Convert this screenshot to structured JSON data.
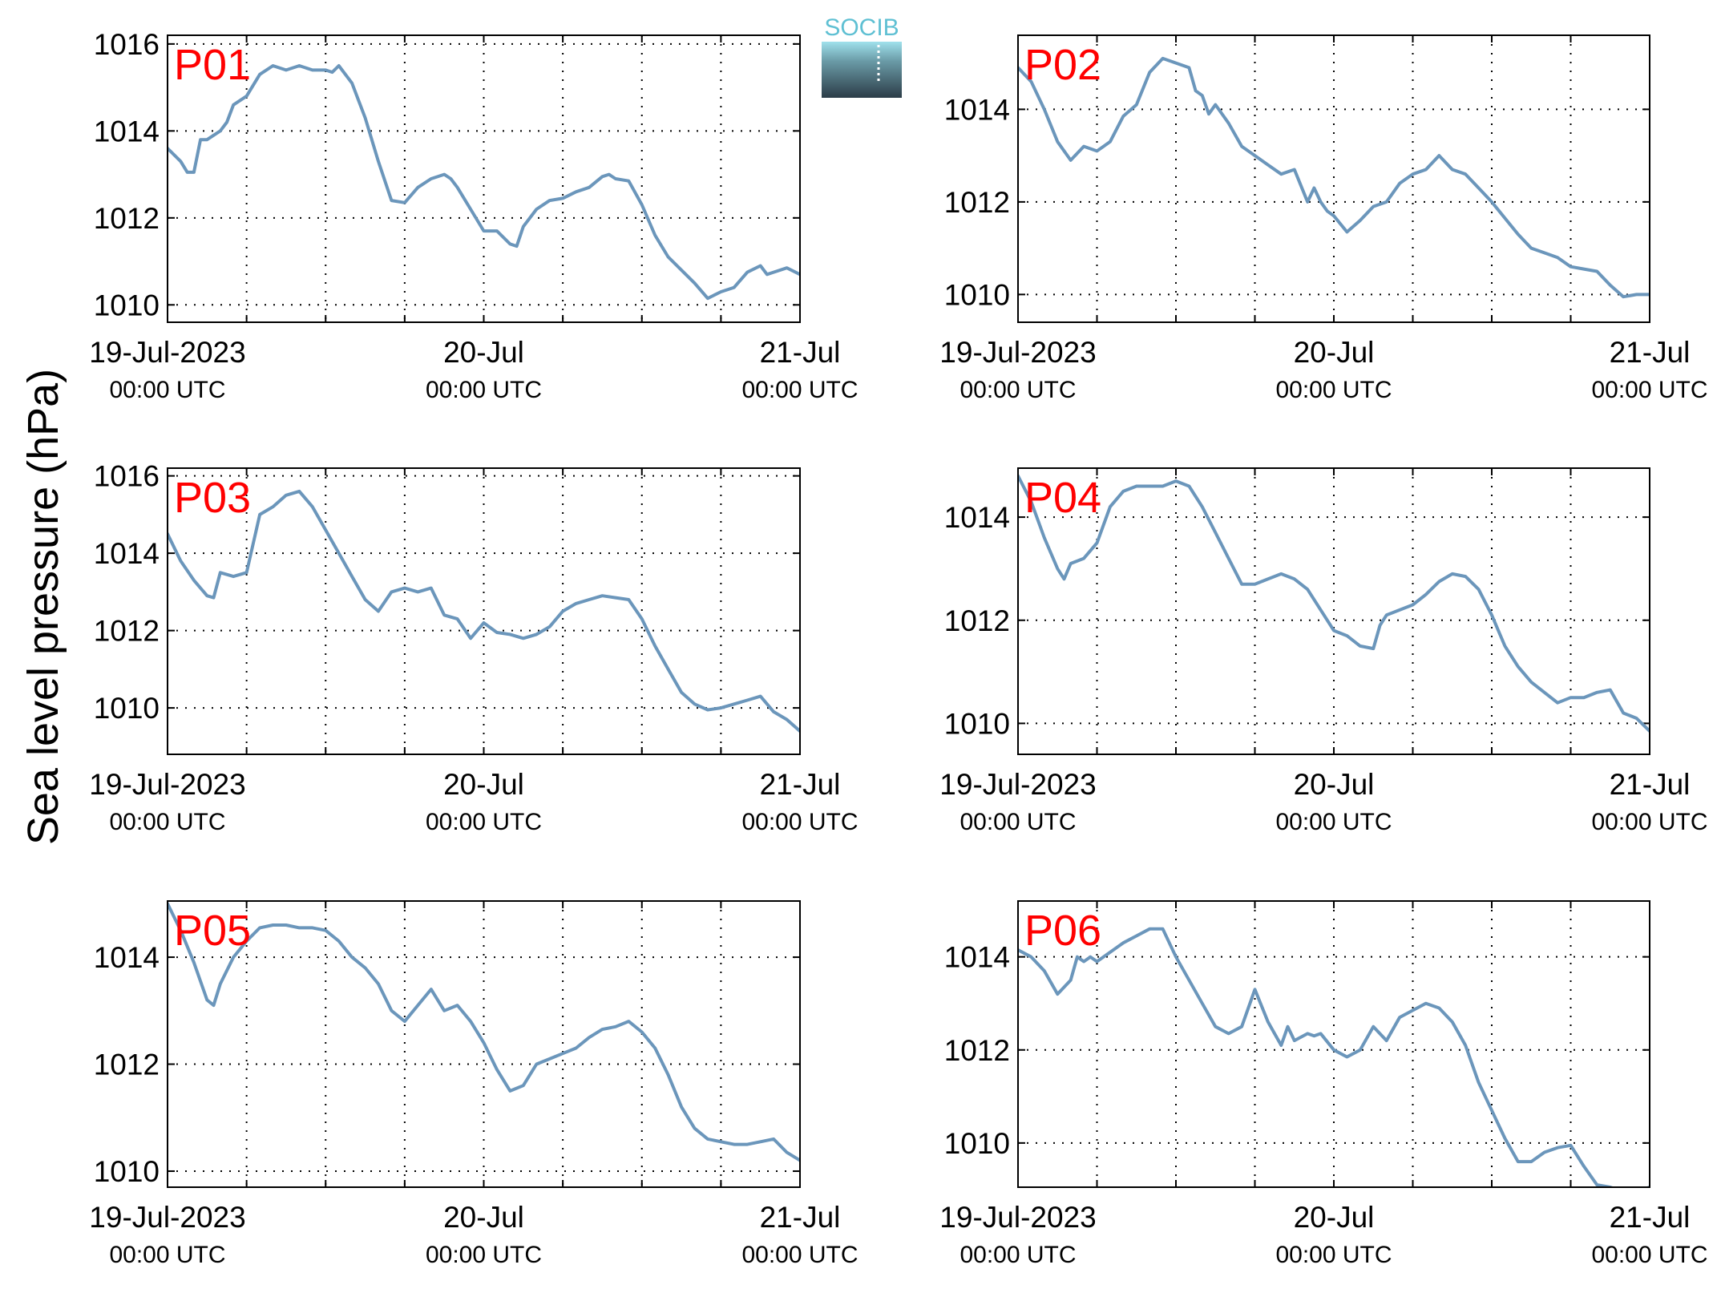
{
  "figure": {
    "ylabel": "Sea level pressure (hPa)",
    "logo_text": "SOCIB",
    "line_color": "#6b96bb",
    "label_color": "#ff0000",
    "axis_color": "#000000"
  },
  "x_axis": {
    "min": "2023-07-19T00:00",
    "max": "2023-07-21T00:00",
    "gridlines": [
      "2023-07-19T00:00",
      "2023-07-19T06:00",
      "2023-07-19T12:00",
      "2023-07-19T18:00",
      "2023-07-20T00:00",
      "2023-07-20T06:00",
      "2023-07-20T12:00",
      "2023-07-20T18:00",
      "2023-07-21T00:00"
    ],
    "ticks": [
      {
        "t": "2023-07-19T00:00",
        "label": "19-Jul-2023",
        "sublabel": "00:00 UTC"
      },
      {
        "t": "2023-07-20T00:00",
        "label": "20-Jul",
        "sublabel": "00:00 UTC"
      },
      {
        "t": "2023-07-21T00:00",
        "label": "21-Jul",
        "sublabel": "00:00 UTC"
      }
    ]
  },
  "chart_data": [
    {
      "type": "line",
      "label": "P01",
      "ylim": [
        1009.6,
        1016.2
      ],
      "yticks": [
        "1010",
        "1012",
        "1014",
        "1016"
      ],
      "grid": true,
      "series": [
        {
          "x": [
            "2023-07-19T00:00",
            "2023-07-19T01:00",
            "2023-07-19T01:30",
            "2023-07-19T02:00",
            "2023-07-19T02:30",
            "2023-07-19T03:00",
            "2023-07-19T04:00",
            "2023-07-19T04:30",
            "2023-07-19T05:00",
            "2023-07-19T06:00",
            "2023-07-19T07:00",
            "2023-07-19T08:00",
            "2023-07-19T09:00",
            "2023-07-19T10:00",
            "2023-07-19T11:00",
            "2023-07-19T12:00",
            "2023-07-19T12:30",
            "2023-07-19T13:00",
            "2023-07-19T14:00",
            "2023-07-19T15:00",
            "2023-07-19T16:00",
            "2023-07-19T17:00",
            "2023-07-19T18:00",
            "2023-07-19T19:00",
            "2023-07-19T20:00",
            "2023-07-19T21:00",
            "2023-07-19T21:30",
            "2023-07-19T22:00",
            "2023-07-19T23:00",
            "2023-07-20T00:00",
            "2023-07-20T01:00",
            "2023-07-20T02:00",
            "2023-07-20T02:30",
            "2023-07-20T03:00",
            "2023-07-20T04:00",
            "2023-07-20T05:00",
            "2023-07-20T06:00",
            "2023-07-20T07:00",
            "2023-07-20T08:00",
            "2023-07-20T09:00",
            "2023-07-20T09:30",
            "2023-07-20T10:00",
            "2023-07-20T11:00",
            "2023-07-20T12:00",
            "2023-07-20T13:00",
            "2023-07-20T14:00",
            "2023-07-20T15:00",
            "2023-07-20T16:00",
            "2023-07-20T17:00",
            "2023-07-20T18:00",
            "2023-07-20T19:00",
            "2023-07-20T20:00",
            "2023-07-20T21:00",
            "2023-07-20T21:30",
            "2023-07-20T22:00",
            "2023-07-20T23:00",
            "2023-07-21T00:00"
          ],
          "y": [
            1013.6,
            1013.3,
            1013.05,
            1013.05,
            1013.8,
            1013.8,
            1014.0,
            1014.2,
            1014.6,
            1014.8,
            1015.3,
            1015.5,
            1015.4,
            1015.5,
            1015.4,
            1015.4,
            1015.35,
            1015.5,
            1015.1,
            1014.3,
            1013.3,
            1012.4,
            1012.35,
            1012.7,
            1012.9,
            1013.0,
            1012.9,
            1012.7,
            1012.2,
            1011.7,
            1011.7,
            1011.4,
            1011.35,
            1011.8,
            1012.2,
            1012.4,
            1012.45,
            1012.6,
            1012.7,
            1012.95,
            1013.0,
            1012.9,
            1012.85,
            1012.3,
            1011.6,
            1011.1,
            1010.8,
            1010.5,
            1010.15,
            1010.3,
            1010.4,
            1010.75,
            1010.9,
            1010.7,
            1010.75,
            1010.85,
            1010.7
          ]
        }
      ]
    },
    {
      "type": "line",
      "label": "P02",
      "ylim": [
        1009.4,
        1015.6
      ],
      "yticks": [
        "1010",
        "1012",
        "1014"
      ],
      "grid": true,
      "series": [
        {
          "x": [
            "2023-07-19T00:00",
            "2023-07-19T01:00",
            "2023-07-19T02:00",
            "2023-07-19T03:00",
            "2023-07-19T04:00",
            "2023-07-19T05:00",
            "2023-07-19T06:00",
            "2023-07-19T06:30",
            "2023-07-19T07:00",
            "2023-07-19T08:00",
            "2023-07-19T09:00",
            "2023-07-19T10:00",
            "2023-07-19T11:00",
            "2023-07-19T12:00",
            "2023-07-19T13:00",
            "2023-07-19T13:30",
            "2023-07-19T14:00",
            "2023-07-19T14:30",
            "2023-07-19T15:00",
            "2023-07-19T16:00",
            "2023-07-19T17:00",
            "2023-07-19T18:00",
            "2023-07-19T19:00",
            "2023-07-19T20:00",
            "2023-07-19T21:00",
            "2023-07-19T22:00",
            "2023-07-19T22:30",
            "2023-07-19T23:00",
            "2023-07-19T23:30",
            "2023-07-20T00:00",
            "2023-07-20T01:00",
            "2023-07-20T02:00",
            "2023-07-20T03:00",
            "2023-07-20T04:00",
            "2023-07-20T05:00",
            "2023-07-20T06:00",
            "2023-07-20T07:00",
            "2023-07-20T08:00",
            "2023-07-20T09:00",
            "2023-07-20T10:00",
            "2023-07-20T11:00",
            "2023-07-20T12:00",
            "2023-07-20T13:00",
            "2023-07-20T14:00",
            "2023-07-20T15:00",
            "2023-07-20T16:00",
            "2023-07-20T17:00",
            "2023-07-20T18:00",
            "2023-07-20T19:00",
            "2023-07-20T20:00",
            "2023-07-20T21:00",
            "2023-07-20T22:00",
            "2023-07-20T23:00",
            "2023-07-21T00:00"
          ],
          "y": [
            1014.9,
            1014.6,
            1014.0,
            1013.3,
            1012.9,
            1013.2,
            1013.1,
            1013.2,
            1013.3,
            1013.85,
            1014.1,
            1014.8,
            1015.1,
            1015.0,
            1014.9,
            1014.4,
            1014.3,
            1013.9,
            1014.1,
            1013.7,
            1013.2,
            1013.0,
            1012.8,
            1012.6,
            1012.7,
            1012.0,
            1012.3,
            1012.0,
            1011.8,
            1011.7,
            1011.35,
            1011.6,
            1011.9,
            1012.0,
            1012.4,
            1012.6,
            1012.7,
            1013.0,
            1012.7,
            1012.6,
            1012.3,
            1012.0,
            1011.65,
            1011.3,
            1011.0,
            1010.9,
            1010.8,
            1010.6,
            1010.55,
            1010.5,
            1010.2,
            1009.95,
            1010.0,
            1010.0
          ]
        }
      ]
    },
    {
      "type": "line",
      "label": "P03",
      "ylim": [
        1008.8,
        1016.2
      ],
      "yticks": [
        "1010",
        "1012",
        "1014",
        "1016"
      ],
      "grid": true,
      "series": [
        {
          "x": [
            "2023-07-19T00:00",
            "2023-07-19T01:00",
            "2023-07-19T02:00",
            "2023-07-19T03:00",
            "2023-07-19T03:30",
            "2023-07-19T04:00",
            "2023-07-19T05:00",
            "2023-07-19T06:00",
            "2023-07-19T07:00",
            "2023-07-19T08:00",
            "2023-07-19T09:00",
            "2023-07-19T10:00",
            "2023-07-19T11:00",
            "2023-07-19T12:00",
            "2023-07-19T13:00",
            "2023-07-19T14:00",
            "2023-07-19T15:00",
            "2023-07-19T16:00",
            "2023-07-19T17:00",
            "2023-07-19T18:00",
            "2023-07-19T19:00",
            "2023-07-19T20:00",
            "2023-07-19T21:00",
            "2023-07-19T22:00",
            "2023-07-19T23:00",
            "2023-07-20T00:00",
            "2023-07-20T01:00",
            "2023-07-20T02:00",
            "2023-07-20T03:00",
            "2023-07-20T04:00",
            "2023-07-20T05:00",
            "2023-07-20T06:00",
            "2023-07-20T07:00",
            "2023-07-20T08:00",
            "2023-07-20T09:00",
            "2023-07-20T10:00",
            "2023-07-20T11:00",
            "2023-07-20T12:00",
            "2023-07-20T13:00",
            "2023-07-20T14:00",
            "2023-07-20T15:00",
            "2023-07-20T16:00",
            "2023-07-20T17:00",
            "2023-07-20T18:00",
            "2023-07-20T19:00",
            "2023-07-20T20:00",
            "2023-07-20T21:00",
            "2023-07-20T22:00",
            "2023-07-20T23:00",
            "2023-07-21T00:00"
          ],
          "y": [
            1014.5,
            1013.8,
            1013.3,
            1012.9,
            1012.85,
            1013.5,
            1013.4,
            1013.5,
            1015.0,
            1015.2,
            1015.5,
            1015.6,
            1015.2,
            1014.6,
            1014.0,
            1013.4,
            1012.8,
            1012.5,
            1013.0,
            1013.1,
            1013.0,
            1013.1,
            1012.4,
            1012.3,
            1011.8,
            1012.2,
            1011.95,
            1011.9,
            1011.8,
            1011.9,
            1012.1,
            1012.5,
            1012.7,
            1012.8,
            1012.9,
            1012.85,
            1012.8,
            1012.3,
            1011.6,
            1011.0,
            1010.4,
            1010.1,
            1009.95,
            1010.0,
            1010.1,
            1010.2,
            1010.3,
            1009.9,
            1009.7,
            1009.4
          ]
        }
      ]
    },
    {
      "type": "line",
      "label": "P04",
      "ylim": [
        1009.4,
        1014.95
      ],
      "yticks": [
        "1010",
        "1012",
        "1014"
      ],
      "grid": true,
      "series": [
        {
          "x": [
            "2023-07-19T00:00",
            "2023-07-19T01:00",
            "2023-07-19T02:00",
            "2023-07-19T03:00",
            "2023-07-19T03:30",
            "2023-07-19T04:00",
            "2023-07-19T05:00",
            "2023-07-19T06:00",
            "2023-07-19T07:00",
            "2023-07-19T08:00",
            "2023-07-19T09:00",
            "2023-07-19T10:00",
            "2023-07-19T11:00",
            "2023-07-19T12:00",
            "2023-07-19T13:00",
            "2023-07-19T14:00",
            "2023-07-19T15:00",
            "2023-07-19T16:00",
            "2023-07-19T17:00",
            "2023-07-19T18:00",
            "2023-07-19T19:00",
            "2023-07-19T20:00",
            "2023-07-19T21:00",
            "2023-07-19T22:00",
            "2023-07-19T23:00",
            "2023-07-20T00:00",
            "2023-07-20T01:00",
            "2023-07-20T02:00",
            "2023-07-20T03:00",
            "2023-07-20T03:30",
            "2023-07-20T04:00",
            "2023-07-20T05:00",
            "2023-07-20T06:00",
            "2023-07-20T07:00",
            "2023-07-20T08:00",
            "2023-07-20T09:00",
            "2023-07-20T10:00",
            "2023-07-20T11:00",
            "2023-07-20T12:00",
            "2023-07-20T13:00",
            "2023-07-20T14:00",
            "2023-07-20T15:00",
            "2023-07-20T16:00",
            "2023-07-20T17:00",
            "2023-07-20T18:00",
            "2023-07-20T19:00",
            "2023-07-20T20:00",
            "2023-07-20T21:00",
            "2023-07-20T22:00",
            "2023-07-20T23:00",
            "2023-07-21T00:00"
          ],
          "y": [
            1014.8,
            1014.3,
            1013.6,
            1013.0,
            1012.8,
            1013.1,
            1013.2,
            1013.5,
            1014.2,
            1014.5,
            1014.6,
            1014.6,
            1014.6,
            1014.7,
            1014.6,
            1014.2,
            1013.7,
            1013.2,
            1012.7,
            1012.7,
            1012.8,
            1012.9,
            1012.8,
            1012.6,
            1012.2,
            1011.8,
            1011.7,
            1011.5,
            1011.45,
            1011.9,
            1012.1,
            1012.2,
            1012.3,
            1012.5,
            1012.75,
            1012.9,
            1012.85,
            1012.6,
            1012.1,
            1011.5,
            1011.1,
            1010.8,
            1010.6,
            1010.4,
            1010.5,
            1010.5,
            1010.6,
            1010.65,
            1010.2,
            1010.1,
            1009.85
          ]
        }
      ]
    },
    {
      "type": "line",
      "label": "P05",
      "ylim": [
        1009.7,
        1015.05
      ],
      "yticks": [
        "1010",
        "1012",
        "1014"
      ],
      "grid": true,
      "series": [
        {
          "x": [
            "2023-07-19T00:00",
            "2023-07-19T01:00",
            "2023-07-19T02:00",
            "2023-07-19T03:00",
            "2023-07-19T03:30",
            "2023-07-19T04:00",
            "2023-07-19T05:00",
            "2023-07-19T06:00",
            "2023-07-19T07:00",
            "2023-07-19T08:00",
            "2023-07-19T09:00",
            "2023-07-19T10:00",
            "2023-07-19T11:00",
            "2023-07-19T12:00",
            "2023-07-19T13:00",
            "2023-07-19T14:00",
            "2023-07-19T15:00",
            "2023-07-19T16:00",
            "2023-07-19T17:00",
            "2023-07-19T18:00",
            "2023-07-19T19:00",
            "2023-07-19T20:00",
            "2023-07-19T21:00",
            "2023-07-19T22:00",
            "2023-07-19T23:00",
            "2023-07-20T00:00",
            "2023-07-20T01:00",
            "2023-07-20T02:00",
            "2023-07-20T03:00",
            "2023-07-20T04:00",
            "2023-07-20T05:00",
            "2023-07-20T06:00",
            "2023-07-20T07:00",
            "2023-07-20T08:00",
            "2023-07-20T09:00",
            "2023-07-20T10:00",
            "2023-07-20T11:00",
            "2023-07-20T12:00",
            "2023-07-20T13:00",
            "2023-07-20T14:00",
            "2023-07-20T15:00",
            "2023-07-20T16:00",
            "2023-07-20T17:00",
            "2023-07-20T18:00",
            "2023-07-20T19:00",
            "2023-07-20T20:00",
            "2023-07-20T21:00",
            "2023-07-20T22:00",
            "2023-07-20T23:00",
            "2023-07-21T00:00"
          ],
          "y": [
            1015.0,
            1014.5,
            1013.9,
            1013.2,
            1013.1,
            1013.5,
            1014.0,
            1014.3,
            1014.55,
            1014.6,
            1014.6,
            1014.55,
            1014.55,
            1014.5,
            1014.3,
            1014.0,
            1013.8,
            1013.5,
            1013.0,
            1012.8,
            1013.1,
            1013.4,
            1013.0,
            1013.1,
            1012.8,
            1012.4,
            1011.9,
            1011.5,
            1011.6,
            1012.0,
            1012.1,
            1012.2,
            1012.3,
            1012.5,
            1012.65,
            1012.7,
            1012.8,
            1012.6,
            1012.3,
            1011.8,
            1011.2,
            1010.8,
            1010.6,
            1010.55,
            1010.5,
            1010.5,
            1010.55,
            1010.6,
            1010.35,
            1010.2
          ]
        }
      ]
    },
    {
      "type": "line",
      "label": "P06",
      "ylim": [
        1009.05,
        1015.2
      ],
      "yticks": [
        "1010",
        "1012",
        "1014"
      ],
      "grid": true,
      "series": [
        {
          "x": [
            "2023-07-19T00:00",
            "2023-07-19T01:00",
            "2023-07-19T02:00",
            "2023-07-19T03:00",
            "2023-07-19T04:00",
            "2023-07-19T04:30",
            "2023-07-19T05:00",
            "2023-07-19T05:30",
            "2023-07-19T06:00",
            "2023-07-19T07:00",
            "2023-07-19T08:00",
            "2023-07-19T09:00",
            "2023-07-19T10:00",
            "2023-07-19T11:00",
            "2023-07-19T12:00",
            "2023-07-19T13:00",
            "2023-07-19T14:00",
            "2023-07-19T15:00",
            "2023-07-19T16:00",
            "2023-07-19T17:00",
            "2023-07-19T18:00",
            "2023-07-19T19:00",
            "2023-07-19T20:00",
            "2023-07-19T20:30",
            "2023-07-19T21:00",
            "2023-07-19T22:00",
            "2023-07-19T22:30",
            "2023-07-19T23:00",
            "2023-07-20T00:00",
            "2023-07-20T01:00",
            "2023-07-20T02:00",
            "2023-07-20T03:00",
            "2023-07-20T04:00",
            "2023-07-20T05:00",
            "2023-07-20T06:00",
            "2023-07-20T07:00",
            "2023-07-20T08:00",
            "2023-07-20T09:00",
            "2023-07-20T10:00",
            "2023-07-20T11:00",
            "2023-07-20T12:00",
            "2023-07-20T13:00",
            "2023-07-20T14:00",
            "2023-07-20T15:00",
            "2023-07-20T16:00",
            "2023-07-20T17:00",
            "2023-07-20T18:00",
            "2023-07-20T19:00",
            "2023-07-20T20:00",
            "2023-07-20T21:00",
            "2023-07-20T22:00",
            "2023-07-20T23:00",
            "2023-07-21T00:00"
          ],
          "y": [
            1014.15,
            1014.0,
            1013.7,
            1013.2,
            1013.5,
            1014.0,
            1013.9,
            1014.0,
            1013.9,
            1014.1,
            1014.3,
            1014.45,
            1014.6,
            1014.6,
            1014.0,
            1013.5,
            1013.0,
            1012.5,
            1012.35,
            1012.5,
            1013.3,
            1012.6,
            1012.1,
            1012.5,
            1012.2,
            1012.35,
            1012.3,
            1012.35,
            1012.0,
            1011.85,
            1012.0,
            1012.5,
            1012.2,
            1012.7,
            1012.85,
            1013.0,
            1012.9,
            1012.6,
            1012.1,
            1011.3,
            1010.7,
            1010.1,
            1009.6,
            1009.6,
            1009.8,
            1009.9,
            1009.95,
            1009.5,
            1009.1,
            1009.05,
            1008.95,
            1008.95,
            1009.05
          ]
        }
      ]
    }
  ]
}
